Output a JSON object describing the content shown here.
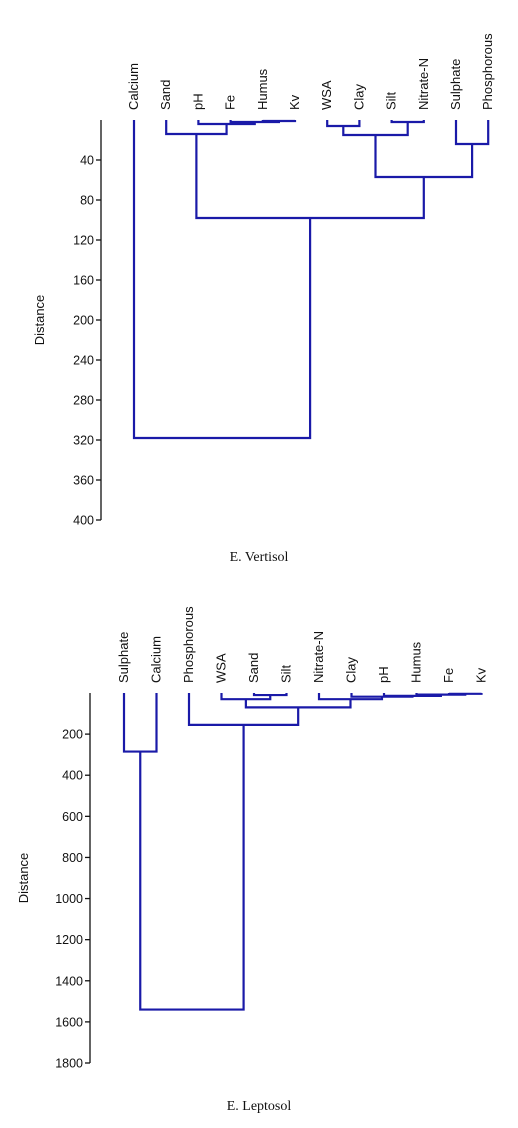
{
  "chart_data": [
    {
      "type": "dendrogram",
      "caption": "E. Vertisol",
      "ylabel": "Distance",
      "ylim": [
        0,
        400
      ],
      "yticks": [
        40,
        80,
        120,
        160,
        200,
        240,
        280,
        320,
        360,
        400
      ],
      "leaves": [
        "Calcium",
        "Sand",
        "pH",
        "Fe",
        "Humus",
        "Kv",
        "WSA",
        "Clay",
        "Silt",
        "Nitrate-N",
        "Sulphate",
        "Phosphorous"
      ],
      "leaf_labels": [
        "Calcium",
        "Sand",
        "pH",
        "Fe",
        "Humus",
        "Kv",
        "WSA",
        "Clay",
        "Silt",
        "Nitrate-N",
        "Sulphate",
        "Phosphorous"
      ],
      "merges": [
        {
          "children": [
            "Humus",
            "Kv"
          ],
          "distance": 1
        },
        {
          "children": [
            "Fe",
            "Humus+Kv"
          ],
          "distance": 2
        },
        {
          "children": [
            "pH",
            "Fe+Humus+Kv"
          ],
          "distance": 4
        },
        {
          "children": [
            "Sand",
            "pH+Fe+Humus+Kv"
          ],
          "distance": 14
        },
        {
          "children": [
            "WSA",
            "Clay"
          ],
          "distance": 6
        },
        {
          "children": [
            "Silt",
            "Nitrate-N"
          ],
          "distance": 2
        },
        {
          "children": [
            "WSA+Clay",
            "Silt+Nitrate-N"
          ],
          "distance": 15
        },
        {
          "children": [
            "Sulphate",
            "Phosphorous"
          ],
          "distance": 24
        },
        {
          "children": [
            "WSA..Nitrate-N",
            "Sulphate+Phosphorous"
          ],
          "distance": 57
        },
        {
          "children": [
            "Sand..Kv",
            "WSA..Phosphorous"
          ],
          "distance": 98
        },
        {
          "children": [
            "Calcium",
            "rest"
          ],
          "distance": 318
        }
      ],
      "color": "#1a1aa8"
    },
    {
      "type": "dendrogram",
      "caption": "E. Leptosol",
      "ylabel": "Distance",
      "ylim": [
        0,
        1800
      ],
      "yticks": [
        200,
        400,
        600,
        800,
        1000,
        1200,
        1400,
        1600,
        1800
      ],
      "leaves": [
        "Sulphate",
        "Calcium",
        "Phosphorous",
        "WSA",
        "Sand",
        "Silt",
        "Nitrate-N",
        "Clay",
        "pH",
        "Humus",
        "Fe",
        "Kv"
      ],
      "leaf_labels": [
        "Sulphate",
        "Calcium",
        "Phosphorous",
        "WSA",
        "Sand",
        "Silt",
        "Nitrate-N",
        "Clay",
        "pH",
        "Humus",
        "Fe",
        "Kv"
      ],
      "merges": [
        {
          "children": [
            "Fe",
            "Kv"
          ],
          "distance": 4
        },
        {
          "children": [
            "Humus",
            "Fe+Kv"
          ],
          "distance": 8
        },
        {
          "children": [
            "pH",
            "Humus+Fe+Kv"
          ],
          "distance": 14
        },
        {
          "children": [
            "Clay",
            "pH..Kv"
          ],
          "distance": 18
        },
        {
          "children": [
            "Nitrate-N",
            "Clay..Kv"
          ],
          "distance": 30
        },
        {
          "children": [
            "Sand",
            "Silt"
          ],
          "distance": 10
        },
        {
          "children": [
            "WSA",
            "Sand+Silt"
          ],
          "distance": 30
        },
        {
          "children": [
            "WSA+Sand+Silt",
            "Nitrate-N..Kv"
          ],
          "distance": 70
        },
        {
          "children": [
            "Phosphorous",
            "WSA..Kv"
          ],
          "distance": 155
        },
        {
          "children": [
            "Sulphate",
            "Calcium"
          ],
          "distance": 285
        },
        {
          "children": [
            "Sulphate+Calcium",
            "Phosphorous..Kv"
          ],
          "distance": 1540
        }
      ],
      "color": "#1a1aa8"
    }
  ]
}
